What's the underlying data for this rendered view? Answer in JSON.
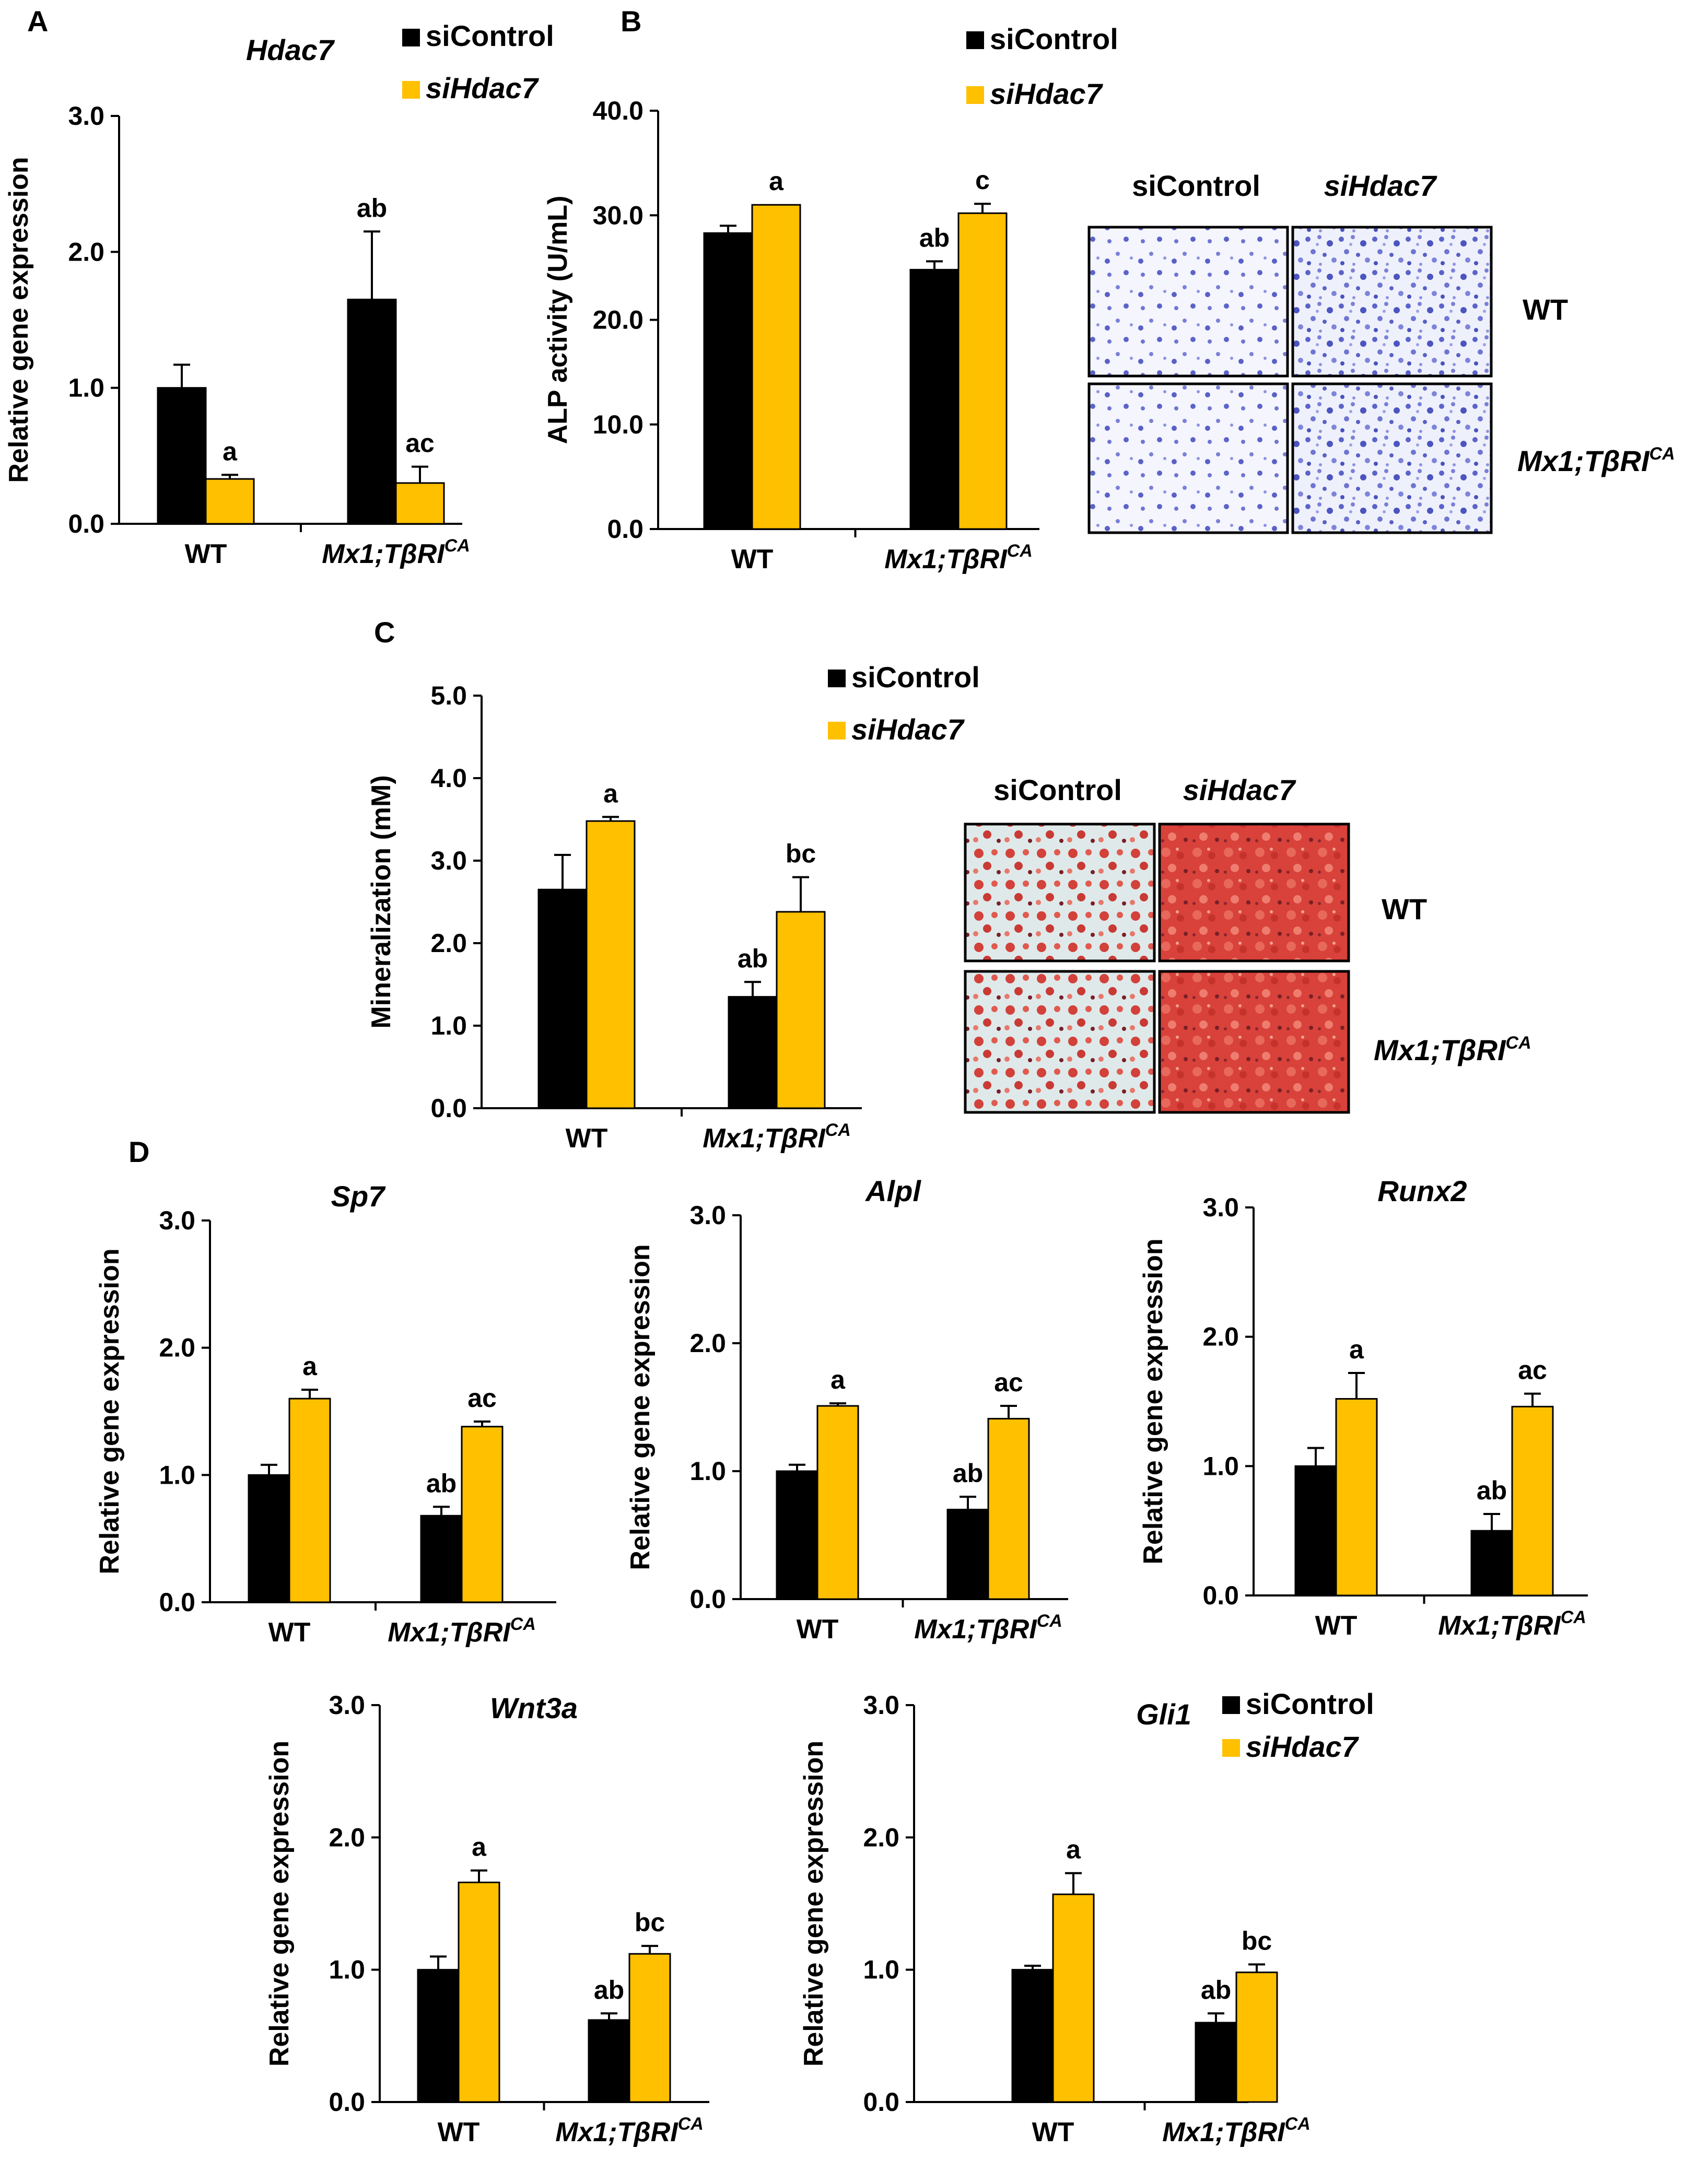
{
  "colors": {
    "siControl": "#000000",
    "siHdac7": "#ffc000",
    "axis": "#000000"
  },
  "legend": {
    "control_label": "siControl",
    "knockdown_label": "siHdac7"
  },
  "groups": {
    "wt": "WT",
    "mut_base": "Mx1;TβRI",
    "mut_sup": "CA"
  },
  "panel_labels": {
    "A": "A",
    "B": "B",
    "C": "C",
    "D": "D"
  },
  "panelB": {
    "staining": {
      "col1": "siControl",
      "col2": "siHdac7",
      "row1": "WT",
      "row2_base": "Mx1;TβRI",
      "row2_sup": "CA"
    }
  },
  "panelC": {
    "staining": {
      "col1": "siControl",
      "col2": "siHdac7",
      "row1": "WT",
      "row2_base": "Mx1;TβRI",
      "row2_sup": "CA"
    }
  },
  "chart_data": [
    {
      "id": "A",
      "type": "bar",
      "title": "Hdac7",
      "ylabel": "Relative gene expression",
      "categories": [
        "WT",
        "Mx1;TβRI^CA"
      ],
      "ylim": [
        0,
        3
      ],
      "yticks": [
        "0.0",
        "1.0",
        "2.0",
        "3.0"
      ],
      "series": [
        {
          "name": "siControl",
          "values": [
            1.0,
            1.65
          ],
          "errors": [
            0.17,
            0.5
          ],
          "sig": [
            "",
            "ab"
          ]
        },
        {
          "name": "siHdac7",
          "values": [
            0.33,
            0.3
          ],
          "errors": [
            0.03,
            0.12
          ],
          "sig": [
            "a",
            "ac"
          ]
        }
      ]
    },
    {
      "id": "B",
      "type": "bar",
      "title": "",
      "ylabel": "ALP activity (U/mL)",
      "categories": [
        "WT",
        "Mx1;TβRI^CA"
      ],
      "ylim": [
        0,
        40
      ],
      "yticks": [
        "0.0",
        "10.0",
        "20.0",
        "30.0",
        "40.0"
      ],
      "series": [
        {
          "name": "siControl",
          "values": [
            28.3,
            24.8
          ],
          "errors": [
            0.7,
            0.8
          ],
          "sig": [
            "",
            "ab"
          ]
        },
        {
          "name": "siHdac7",
          "values": [
            31.0,
            30.2
          ],
          "errors": [
            0.0,
            0.9
          ],
          "sig": [
            "a",
            "c"
          ]
        }
      ]
    },
    {
      "id": "C",
      "type": "bar",
      "title": "",
      "ylabel": "Mineralization (mM)",
      "categories": [
        "WT",
        "Mx1;TβRI^CA"
      ],
      "ylim": [
        0,
        5
      ],
      "yticks": [
        "0.0",
        "1.0",
        "2.0",
        "3.0",
        "4.0",
        "5.0"
      ],
      "series": [
        {
          "name": "siControl",
          "values": [
            2.65,
            1.35
          ],
          "errors": [
            0.42,
            0.18
          ],
          "sig": [
            "",
            "ab"
          ]
        },
        {
          "name": "siHdac7",
          "values": [
            3.48,
            2.38
          ],
          "errors": [
            0.05,
            0.42
          ],
          "sig": [
            "a",
            "bc"
          ]
        }
      ]
    },
    {
      "id": "Sp7",
      "type": "bar",
      "title": "Sp7",
      "ylabel": "Relative gene expression",
      "categories": [
        "WT",
        "Mx1;TβRI^CA"
      ],
      "ylim": [
        0,
        3
      ],
      "yticks": [
        "0.0",
        "1.0",
        "2.0",
        "3.0"
      ],
      "series": [
        {
          "name": "siControl",
          "values": [
            1.0,
            0.68
          ],
          "errors": [
            0.08,
            0.07
          ],
          "sig": [
            "",
            "ab"
          ]
        },
        {
          "name": "siHdac7",
          "values": [
            1.6,
            1.38
          ],
          "errors": [
            0.07,
            0.04
          ],
          "sig": [
            "a",
            "ac"
          ]
        }
      ]
    },
    {
      "id": "Alpl",
      "type": "bar",
      "title": "Alpl",
      "ylabel": "Relative gene expression",
      "categories": [
        "WT",
        "Mx1;TβRI^CA"
      ],
      "ylim": [
        0,
        3
      ],
      "yticks": [
        "0.0",
        "1.0",
        "2.0",
        "3.0"
      ],
      "series": [
        {
          "name": "siControl",
          "values": [
            1.0,
            0.7
          ],
          "errors": [
            0.05,
            0.1
          ],
          "sig": [
            "",
            "ab"
          ]
        },
        {
          "name": "siHdac7",
          "values": [
            1.51,
            1.41
          ],
          "errors": [
            0.02,
            0.1
          ],
          "sig": [
            "a",
            "ac"
          ]
        }
      ]
    },
    {
      "id": "Runx2",
      "type": "bar",
      "title": "Runx2",
      "ylabel": "Relative gene expression",
      "categories": [
        "WT",
        "Mx1;TβRI^CA"
      ],
      "ylim": [
        0,
        3
      ],
      "yticks": [
        "0.0",
        "1.0",
        "2.0",
        "3.0"
      ],
      "series": [
        {
          "name": "siControl",
          "values": [
            1.0,
            0.5
          ],
          "errors": [
            0.14,
            0.13
          ],
          "sig": [
            "",
            "ab"
          ]
        },
        {
          "name": "siHdac7",
          "values": [
            1.52,
            1.46
          ],
          "errors": [
            0.2,
            0.1
          ],
          "sig": [
            "a",
            "ac"
          ]
        }
      ]
    },
    {
      "id": "Wnt3a",
      "type": "bar",
      "title": "Wnt3a",
      "ylabel": "Relative gene expression",
      "categories": [
        "WT",
        "Mx1;TβRI^CA"
      ],
      "ylim": [
        0,
        3
      ],
      "yticks": [
        "0.0",
        "1.0",
        "2.0",
        "3.0"
      ],
      "series": [
        {
          "name": "siControl",
          "values": [
            1.0,
            0.62
          ],
          "errors": [
            0.1,
            0.05
          ],
          "sig": [
            "",
            "ab"
          ]
        },
        {
          "name": "siHdac7",
          "values": [
            1.66,
            1.12
          ],
          "errors": [
            0.09,
            0.06
          ],
          "sig": [
            "a",
            "bc"
          ]
        }
      ]
    },
    {
      "id": "Gli1",
      "type": "bar",
      "title": "Gli1",
      "ylabel": "Relative gene expression",
      "categories": [
        "WT",
        "Mx1;TβRI^CA"
      ],
      "ylim": [
        0,
        3
      ],
      "yticks": [
        "0.0",
        "1.0",
        "2.0",
        "3.0"
      ],
      "series": [
        {
          "name": "siControl",
          "values": [
            1.0,
            0.6
          ],
          "errors": [
            0.03,
            0.07
          ],
          "sig": [
            "",
            "ab"
          ]
        },
        {
          "name": "siHdac7",
          "values": [
            1.57,
            0.98
          ],
          "errors": [
            0.16,
            0.06
          ],
          "sig": [
            "a",
            "bc"
          ]
        }
      ]
    }
  ]
}
